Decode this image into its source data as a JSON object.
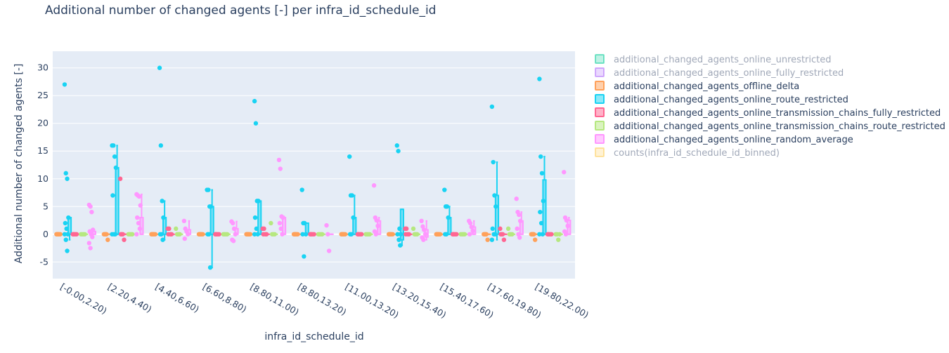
{
  "chart_data": {
    "type": "box",
    "title": "Additional number of changed agents [-] per infra_id_schedule_id",
    "xlabel": "infra_id_schedule_id",
    "ylabel": "Additional number of changed agents [-]",
    "ylim": [
      -8,
      33
    ],
    "yticks": [
      -5,
      0,
      5,
      10,
      15,
      20,
      25,
      30
    ],
    "grid": true,
    "legend_position": "right",
    "categories": [
      "[-0.00,2.20)",
      "[2.20,4.40)",
      "[4.40,6.60)",
      "[6.60,8.80)",
      "[8.80,11.00)",
      "[8.80,13.20)",
      "[11.00,13.20)",
      "[13.20,15.40)",
      "[15.40,17.60)",
      "[17.60,19.80)",
      "[19.80,22.00)"
    ],
    "series": [
      {
        "name": "additional_changed_agents_online_unrestricted",
        "color": "#00cc96",
        "visible": false,
        "boxes": []
      },
      {
        "name": "additional_changed_agents_online_fully_restricted",
        "color": "#ab63fa",
        "visible": false,
        "boxes": []
      },
      {
        "name": "additional_changed_agents_offline_delta",
        "color": "#ffa15a",
        "visible": true,
        "boxes": [
          {
            "q1": 0,
            "median": 0,
            "q3": 0,
            "lower": 0,
            "upper": 0,
            "points": [
              0,
              0,
              0,
              0,
              0,
              0
            ]
          },
          {
            "q1": 0,
            "median": 0,
            "q3": 0,
            "lower": 0,
            "upper": 0,
            "points": [
              0,
              0,
              0,
              -1,
              0,
              0
            ]
          },
          {
            "q1": 0,
            "median": 0,
            "q3": 0,
            "lower": 0,
            "upper": 0,
            "points": [
              0,
              0,
              0,
              0,
              0,
              0
            ]
          },
          {
            "q1": 0,
            "median": 0,
            "q3": 0,
            "lower": 0,
            "upper": 0,
            "points": [
              0,
              0,
              0,
              0,
              0,
              0
            ]
          },
          {
            "q1": 0,
            "median": 0,
            "q3": 0,
            "lower": 0,
            "upper": 0,
            "points": [
              0,
              0,
              0,
              0,
              0,
              0
            ]
          },
          {
            "q1": 0,
            "median": 0,
            "q3": 0,
            "lower": 0,
            "upper": 0,
            "points": [
              0,
              0,
              0,
              0,
              0,
              0
            ]
          },
          {
            "q1": 0,
            "median": 0,
            "q3": 0,
            "lower": 0,
            "upper": 0,
            "points": [
              0,
              0,
              0,
              0,
              0,
              0
            ]
          },
          {
            "q1": 0,
            "median": 0,
            "q3": 0,
            "lower": 0,
            "upper": 0,
            "points": [
              0,
              0,
              0,
              0,
              0,
              0
            ]
          },
          {
            "q1": 0,
            "median": 0,
            "q3": 0,
            "lower": 0,
            "upper": 0,
            "points": [
              0,
              0,
              0,
              0,
              0,
              0
            ]
          },
          {
            "q1": 0,
            "median": 0,
            "q3": 0,
            "lower": 0,
            "upper": 0,
            "points": [
              0,
              0,
              0,
              -1,
              0,
              0
            ]
          },
          {
            "q1": 0,
            "median": 0,
            "q3": 0,
            "lower": 0,
            "upper": 0,
            "points": [
              0,
              0,
              0,
              -1,
              0,
              0
            ]
          }
        ]
      },
      {
        "name": "additional_changed_agents_online_route_restricted",
        "color": "#19d3f3",
        "visible": true,
        "boxes": [
          {
            "q1": 0,
            "median": 0,
            "q3": 3,
            "lower": -1,
            "upper": 3,
            "points": [
              27,
              11,
              10,
              3,
              2,
              1,
              0,
              0,
              -1,
              -3
            ]
          },
          {
            "q1": 0,
            "median": 0,
            "q3": 12,
            "lower": 0,
            "upper": 16,
            "points": [
              16,
              16,
              14,
              12,
              7,
              0,
              0,
              0
            ]
          },
          {
            "q1": 0,
            "median": 0,
            "q3": 3,
            "lower": -1,
            "upper": 6,
            "points": [
              30,
              16,
              6,
              3,
              0,
              0,
              -1
            ]
          },
          {
            "q1": 0,
            "median": 0,
            "q3": 5,
            "lower": -6,
            "upper": 8,
            "points": [
              8,
              8,
              5,
              5,
              0,
              0,
              -6
            ]
          },
          {
            "q1": 0,
            "median": 0,
            "q3": 6,
            "lower": 0,
            "upper": 6,
            "points": [
              24,
              20,
              6,
              6,
              3,
              1,
              0,
              0
            ]
          },
          {
            "q1": 0,
            "median": 0,
            "q3": 2,
            "lower": 0,
            "upper": 2,
            "points": [
              8,
              2,
              2,
              0,
              0,
              -4
            ]
          },
          {
            "q1": 0,
            "median": 0,
            "q3": 3,
            "lower": 0,
            "upper": 7,
            "points": [
              14,
              7,
              7,
              3,
              0,
              0
            ]
          },
          {
            "q1": -1,
            "median": 0,
            "q3": 4.5,
            "lower": -2,
            "upper": 4.5,
            "points": [
              16,
              15,
              1,
              0,
              0,
              -1,
              -2
            ]
          },
          {
            "q1": 0,
            "median": 0,
            "q3": 3,
            "lower": 0,
            "upper": 5,
            "points": [
              8,
              5,
              5,
              3,
              0,
              0
            ]
          },
          {
            "q1": 0,
            "median": 0,
            "q3": 7,
            "lower": -1,
            "upper": 13,
            "points": [
              23,
              13,
              7,
              5,
              1,
              0,
              0,
              -1
            ]
          },
          {
            "q1": 0,
            "median": 0,
            "q3": 9.8,
            "lower": 0,
            "upper": 14,
            "points": [
              28,
              14,
              11,
              6,
              4,
              2,
              0,
              0
            ]
          }
        ]
      },
      {
        "name": "additional_changed_agents_online_transmission_chains_fully_restricted",
        "color": "#ff6692",
        "visible": true,
        "boxes": [
          {
            "q1": 0,
            "median": 0,
            "q3": 0,
            "lower": 0,
            "upper": 0,
            "points": [
              0,
              0,
              0,
              0,
              0
            ]
          },
          {
            "q1": 0,
            "median": 0,
            "q3": 0,
            "lower": 0,
            "upper": 0,
            "points": [
              10,
              0,
              0,
              -1,
              0
            ]
          },
          {
            "q1": 0,
            "median": 0,
            "q3": 0,
            "lower": 0,
            "upper": 0,
            "points": [
              1,
              1,
              0,
              0,
              0
            ]
          },
          {
            "q1": 0,
            "median": 0,
            "q3": 0,
            "lower": 0,
            "upper": 0,
            "points": [
              0,
              0,
              0,
              0,
              0
            ]
          },
          {
            "q1": 0,
            "median": 0,
            "q3": 0,
            "lower": 0,
            "upper": 0,
            "points": [
              1,
              1,
              0,
              0,
              0
            ]
          },
          {
            "q1": 0,
            "median": 0,
            "q3": 0,
            "lower": 0,
            "upper": 0,
            "points": [
              0,
              0,
              0,
              0,
              0
            ]
          },
          {
            "q1": 0,
            "median": 0,
            "q3": 0,
            "lower": 0,
            "upper": 0,
            "points": [
              0,
              0,
              0,
              0,
              0
            ]
          },
          {
            "q1": 0,
            "median": 0,
            "q3": 0,
            "lower": 0,
            "upper": 0,
            "points": [
              1,
              1,
              0,
              0,
              0
            ]
          },
          {
            "q1": 0,
            "median": 0,
            "q3": 0,
            "lower": 0,
            "upper": 0,
            "points": [
              0,
              0,
              0,
              0,
              0
            ]
          },
          {
            "q1": 0,
            "median": 0,
            "q3": 0,
            "lower": 0,
            "upper": 0,
            "points": [
              1,
              0,
              0,
              -1,
              0
            ]
          },
          {
            "q1": 0,
            "median": 0,
            "q3": 0,
            "lower": 0,
            "upper": 0,
            "points": [
              0,
              0,
              0,
              0,
              0
            ]
          }
        ]
      },
      {
        "name": "additional_changed_agents_online_transmission_chains_route_restricted",
        "color": "#b6e880",
        "visible": true,
        "boxes": [
          {
            "q1": 0,
            "median": 0,
            "q3": 0,
            "lower": 0,
            "upper": 0,
            "points": [
              0,
              0,
              0,
              0
            ]
          },
          {
            "q1": 0,
            "median": 0,
            "q3": 0,
            "lower": 0,
            "upper": 0,
            "points": [
              0,
              0,
              0,
              0
            ]
          },
          {
            "q1": 0,
            "median": 0,
            "q3": 0,
            "lower": 0,
            "upper": 0,
            "points": [
              1,
              0,
              0,
              0
            ]
          },
          {
            "q1": 0,
            "median": 0,
            "q3": 0,
            "lower": 0,
            "upper": 0,
            "points": [
              0,
              0,
              0,
              0
            ]
          },
          {
            "q1": 0,
            "median": 0,
            "q3": 0,
            "lower": 0,
            "upper": 0,
            "points": [
              2,
              0,
              0,
              0
            ]
          },
          {
            "q1": 0,
            "median": 0,
            "q3": 0,
            "lower": 0,
            "upper": 0,
            "points": [
              0,
              0,
              0,
              0
            ]
          },
          {
            "q1": 0,
            "median": 0,
            "q3": 0,
            "lower": 0,
            "upper": 0,
            "points": [
              0,
              0,
              0,
              0
            ]
          },
          {
            "q1": 0,
            "median": 0,
            "q3": 0,
            "lower": 0,
            "upper": 0,
            "points": [
              1,
              0,
              0,
              0
            ]
          },
          {
            "q1": 0,
            "median": 0,
            "q3": 0,
            "lower": 0,
            "upper": 0,
            "points": [
              0,
              0,
              0,
              0
            ]
          },
          {
            "q1": 0,
            "median": 0,
            "q3": 0,
            "lower": 0,
            "upper": 0,
            "points": [
              1,
              0,
              0,
              0
            ]
          },
          {
            "q1": 0,
            "median": 0,
            "q3": 0,
            "lower": 0,
            "upper": 0,
            "points": [
              0,
              0,
              -1,
              0
            ]
          }
        ]
      },
      {
        "name": "additional_changed_agents_online_random_average",
        "color": "#ff97ff",
        "visible": true,
        "boxes": [
          {
            "q1": 0,
            "median": 0,
            "q3": 0.5,
            "lower": 0,
            "upper": 0.8,
            "points": [
              5.3,
              5,
              4,
              0.8,
              0.5,
              0,
              -0.5,
              -1.6,
              -2.5
            ]
          },
          {
            "q1": 0,
            "median": 0,
            "q3": 3,
            "lower": 0,
            "upper": 7.2,
            "points": [
              7.2,
              7,
              6.8,
              5.2,
              3,
              2,
              1,
              0
            ]
          },
          {
            "q1": 0,
            "median": 0,
            "q3": 0.8,
            "lower": 0,
            "upper": 2.4,
            "points": [
              2.4,
              1,
              0.5,
              0,
              -0.8
            ]
          },
          {
            "q1": 0,
            "median": 0,
            "q3": 1,
            "lower": 0,
            "upper": 2.3,
            "points": [
              2.3,
              2,
              1,
              0,
              -1,
              -1.2
            ]
          },
          {
            "q1": 0,
            "median": 0,
            "q3": 3,
            "lower": 0,
            "upper": 3.2,
            "points": [
              13.4,
              11.8,
              3.2,
              3,
              2,
              1,
              0
            ]
          },
          {
            "q1": 0,
            "median": 0,
            "q3": 0,
            "lower": 0,
            "upper": 0,
            "points": [
              1.6,
              0,
              -3
            ]
          },
          {
            "q1": 0,
            "median": 0,
            "q3": 2.4,
            "lower": 0,
            "upper": 3,
            "points": [
              8.8,
              3,
              2.5,
              1.5,
              0.5,
              0
            ]
          },
          {
            "q1": -0.5,
            "median": 0,
            "q3": 0.8,
            "lower": -1,
            "upper": 2.4,
            "points": [
              2.4,
              1.4,
              0.8,
              0,
              -0.6,
              -1
            ]
          },
          {
            "q1": 0,
            "median": 0,
            "q3": 1.3,
            "lower": 0,
            "upper": 2.4,
            "points": [
              2.4,
              2,
              1.3,
              0.6,
              0
            ]
          },
          {
            "q1": 0,
            "median": 0,
            "q3": 2.4,
            "lower": 0,
            "upper": 4,
            "points": [
              6.4,
              4,
              3.5,
              2.4,
              1,
              0,
              -0.6
            ]
          },
          {
            "q1": 0,
            "median": 0,
            "q3": 2.5,
            "lower": 0,
            "upper": 3,
            "points": [
              11.2,
              3,
              2.5,
              1.5,
              0.5,
              0
            ]
          }
        ]
      },
      {
        "name": "counts(infra_id_schedule_id_binned)",
        "color": "#fecb52",
        "visible": false,
        "boxes": []
      }
    ]
  }
}
